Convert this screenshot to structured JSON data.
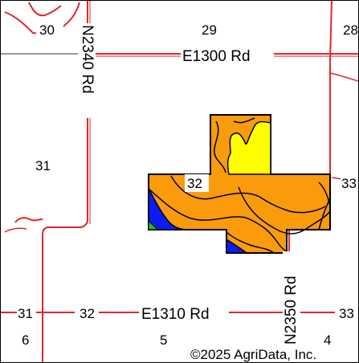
{
  "map": {
    "sections": {
      "s29": "29",
      "s28": "28",
      "s30": "30",
      "s31_left": "31",
      "s32_field": "32",
      "s33_right": "33",
      "s31_bottom": "31",
      "s32_bottom": "32",
      "s33_bottom": "33",
      "s6": "6",
      "s5": "5",
      "s4": "4"
    },
    "roads": {
      "e1300": "E1300 Rd",
      "n2340": "N2340 Rd",
      "e1310": "E1310 Rd",
      "n2350": "N2350 Rd"
    },
    "copyright": "©2025 AgriData, Inc.",
    "colors": {
      "road": "#e0262b",
      "section_line": "#999999",
      "field_orange": "#f99b0a",
      "field_yellow": "#ffff00",
      "field_blue": "#0a1cf2",
      "field_green": "#22bb22",
      "boundary": "#000000",
      "background": "#ffffff"
    }
  }
}
